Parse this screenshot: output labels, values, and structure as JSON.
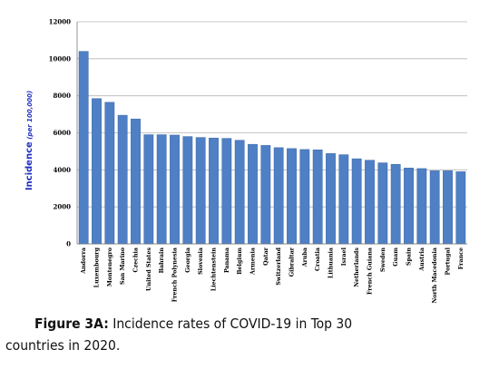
{
  "chart_data": {
    "type": "bar",
    "title": "",
    "xlabel": "",
    "ylabel": "Incidence",
    "ylabel_unit": "(per 100,000)",
    "ylim": [
      0,
      12000
    ],
    "yticks": [
      0,
      2000,
      4000,
      6000,
      8000,
      10000,
      12000
    ],
    "ytick_labels": [
      "0",
      "2000",
      "4000",
      "6000",
      "8000",
      "10000",
      "12000"
    ],
    "grid": true,
    "legend": "none",
    "bar_color": "#4f7fc4",
    "bar_edge_color": "#3e6aa8",
    "categories": [
      "Andorra",
      "Luxembourg",
      "Montenegro",
      "San Marino",
      "Czechia",
      "United States",
      "Bahrain",
      "French Polynesia",
      "Georgia",
      "Slovenia",
      "Liechtenstein",
      "Panama",
      "Belgium",
      "Armenia",
      "Qatar",
      "Switzerland",
      "Gibraltar",
      "Aruba",
      "Croatia",
      "Lithuania",
      "Israel",
      "Netherlands",
      "French Guiana",
      "Sweden",
      "Guam",
      "Spain",
      "Austria",
      "North Macedonia",
      "Portugal",
      "France"
    ],
    "values": [
      10400,
      7850,
      7650,
      6950,
      6750,
      5900,
      5900,
      5880,
      5800,
      5750,
      5720,
      5700,
      5600,
      5380,
      5320,
      5200,
      5150,
      5100,
      5080,
      4880,
      4820,
      4600,
      4520,
      4380,
      4300,
      4100,
      4070,
      3950,
      3950,
      3900
    ]
  },
  "caption": {
    "label": "Figure 3A:",
    "text_line1": "Incidence rates of COVID-19 in Top 30",
    "text_line2": "countries in 2020."
  }
}
